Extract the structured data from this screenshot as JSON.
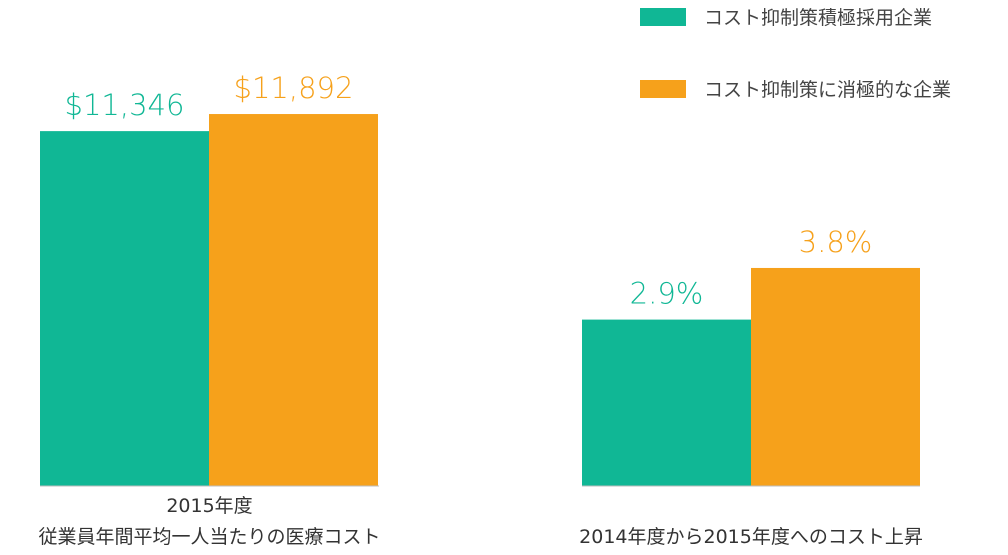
{
  "chart_data": [
    {
      "type": "bar",
      "categories": [
        "2015年度\n従業員年間平均一人当たりの医療コスト"
      ],
      "category_lines": [
        "2015年度",
        "従業員年間平均一人当たりの医療コスト"
      ],
      "series": [
        {
          "name": "コスト抑制策積極採用企業",
          "values": [
            11346
          ],
          "label": "$11,346"
        },
        {
          "name": "コスト抑制策に消極的な企業",
          "values": [
            11892
          ],
          "label": "$11,892"
        }
      ],
      "ylim": [
        0,
        13300
      ]
    },
    {
      "type": "bar",
      "categories": [
        "2014年度から2015年度へのコスト上昇"
      ],
      "category_lines": [
        "2014年度から2015年度へのコスト上昇"
      ],
      "series": [
        {
          "name": "コスト抑制策積極採用企業",
          "values": [
            2.9
          ],
          "label": "2.9%"
        },
        {
          "name": "コスト抑制策に消極的な企業",
          "values": [
            3.8
          ],
          "label": "3.8%"
        }
      ],
      "ylim": [
        0,
        7.25
      ]
    }
  ],
  "legend": {
    "placement": "top-right",
    "items": [
      {
        "label": "コスト抑制策積極採用企業",
        "color": "#10B795"
      },
      {
        "label": "コスト抑制策に消極的な企業",
        "color": "#F6A11B"
      }
    ]
  },
  "colors": {
    "series_1": "#10B795",
    "series_2": "#F6A11B",
    "baseline": "#bdbdbd",
    "text": "#333333"
  }
}
